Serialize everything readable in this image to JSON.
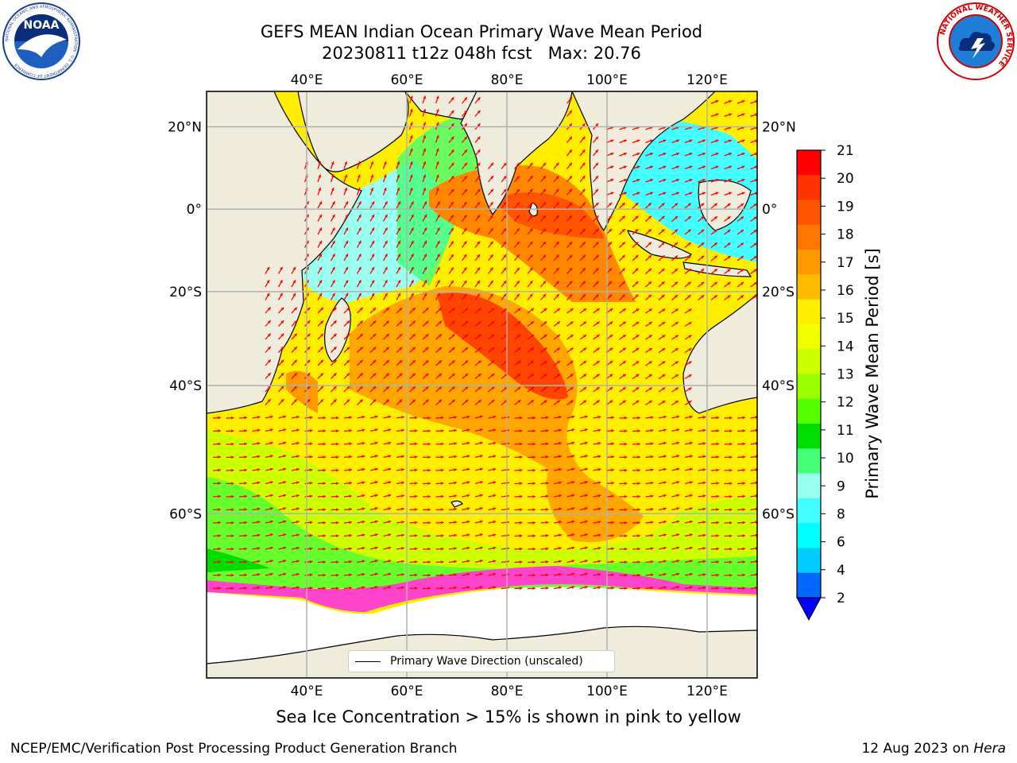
{
  "title": {
    "line1": "GEFS MEAN Indian Ocean Primary Wave Mean Period",
    "line2_run": "20230811 t12z 048h fcst",
    "line2_max": "Max: 20.76"
  },
  "logos": {
    "noaa": {
      "text": "NOAA",
      "ring_text": "NATIONAL OCEANIC AND ATMOSPHERIC ADMINISTRATION · U.S. DEPARTMENT OF COMMERCE"
    },
    "nws": {
      "ring_text": "NATIONAL WEATHER SERVICE"
    }
  },
  "map": {
    "lon_range": [
      20,
      130
    ],
    "lat_range": [
      -75,
      28
    ],
    "lon_ticks": [
      "40°E",
      "60°E",
      "80°E",
      "100°E",
      "120°E"
    ],
    "lon_values": [
      40,
      60,
      80,
      100,
      120
    ],
    "lat_ticks": [
      "20°N",
      "0°",
      "20°S",
      "40°S",
      "60°S"
    ],
    "lat_values": [
      20,
      0,
      -20,
      -40,
      -60
    ],
    "grid": true,
    "land_color": "#efecdc",
    "arrow_color": "#ff0000"
  },
  "legend": {
    "label": "Primary Wave Direction (unscaled)",
    "placement": "bottom-center"
  },
  "colorbar": {
    "label": "Primary Wave Mean Period [s]",
    "ticks": [
      "21",
      "20",
      "19",
      "18",
      "17",
      "16",
      "15",
      "14",
      "13",
      "12",
      "11",
      "10",
      "9",
      "8",
      "6",
      "4",
      "2"
    ],
    "colors": [
      "#ff0000",
      "#ff3300",
      "#ff5500",
      "#ff7700",
      "#ff9900",
      "#ffbb00",
      "#ffee00",
      "#f0ff00",
      "#ccff00",
      "#99ff00",
      "#55ff00",
      "#00dd00",
      "#44ff77",
      "#99ffee",
      "#44ffff",
      "#00ffff",
      "#00ccff",
      "#0066ff"
    ],
    "extend_color": "#0000ff"
  },
  "caption": "Sea Ice Concentration > 15% is shown in pink to yellow",
  "credit_left": "NCEP/EMC/Verification Post Processing Product Generation Branch",
  "credit_right_date": "12 Aug 2023 on",
  "credit_right_machine": "Hera"
}
